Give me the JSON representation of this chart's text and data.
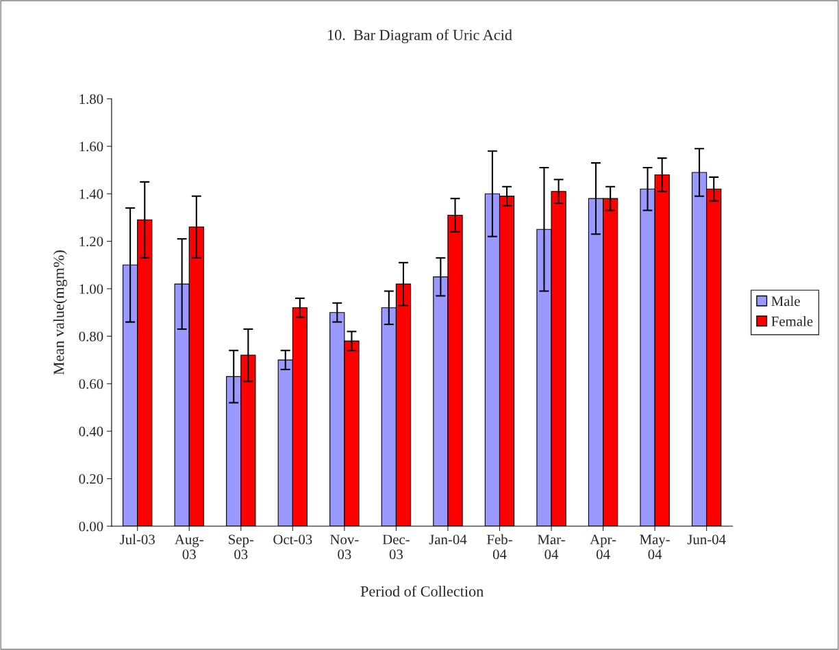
{
  "chart_data": {
    "type": "bar",
    "title": "10.  Bar Diagram of Uric Acid",
    "xlabel": "Period of Collection",
    "ylabel": "Mean value(mgm%)",
    "categories": [
      "Jul-03",
      "Aug-\n03",
      "Sep-\n03",
      "Oct-03",
      "Nov-\n03",
      "Dec-\n03",
      "Jan-04",
      "Feb-\n04",
      "Mar-\n04",
      "Apr-\n04",
      "May-\n04",
      "Jun-04"
    ],
    "series": [
      {
        "name": "Male",
        "color": "#9999ff",
        "values": [
          1.1,
          1.02,
          0.63,
          0.7,
          0.9,
          0.92,
          1.05,
          1.4,
          1.25,
          1.38,
          1.42,
          1.49
        ],
        "errors": [
          0.24,
          0.19,
          0.11,
          0.04,
          0.04,
          0.07,
          0.08,
          0.18,
          0.26,
          0.15,
          0.09,
          0.1
        ]
      },
      {
        "name": "Female",
        "color": "#ff0000",
        "values": [
          1.29,
          1.26,
          0.72,
          0.92,
          0.78,
          1.02,
          1.31,
          1.39,
          1.41,
          1.38,
          1.48,
          1.42
        ],
        "errors": [
          0.16,
          0.13,
          0.11,
          0.04,
          0.04,
          0.09,
          0.07,
          0.04,
          0.05,
          0.05,
          0.07,
          0.05
        ]
      }
    ],
    "ylim": [
      0,
      1.8
    ],
    "yticks": [
      {
        "value": 0,
        "label": "0.00"
      },
      {
        "value": 0.2,
        "label": "0.20"
      },
      {
        "value": 0.4,
        "label": "0.40"
      },
      {
        "value": 0.6,
        "label": "0.60"
      },
      {
        "value": 0.8,
        "label": "0.80"
      },
      {
        "value": 1.0,
        "label": "1.00"
      },
      {
        "value": 1.2,
        "label": "1.20"
      },
      {
        "value": 1.4,
        "label": "1.40"
      },
      {
        "value": 1.6,
        "label": "1.60"
      },
      {
        "value": 1.8,
        "label": "1.80"
      }
    ],
    "grid": false,
    "legend": "right"
  }
}
